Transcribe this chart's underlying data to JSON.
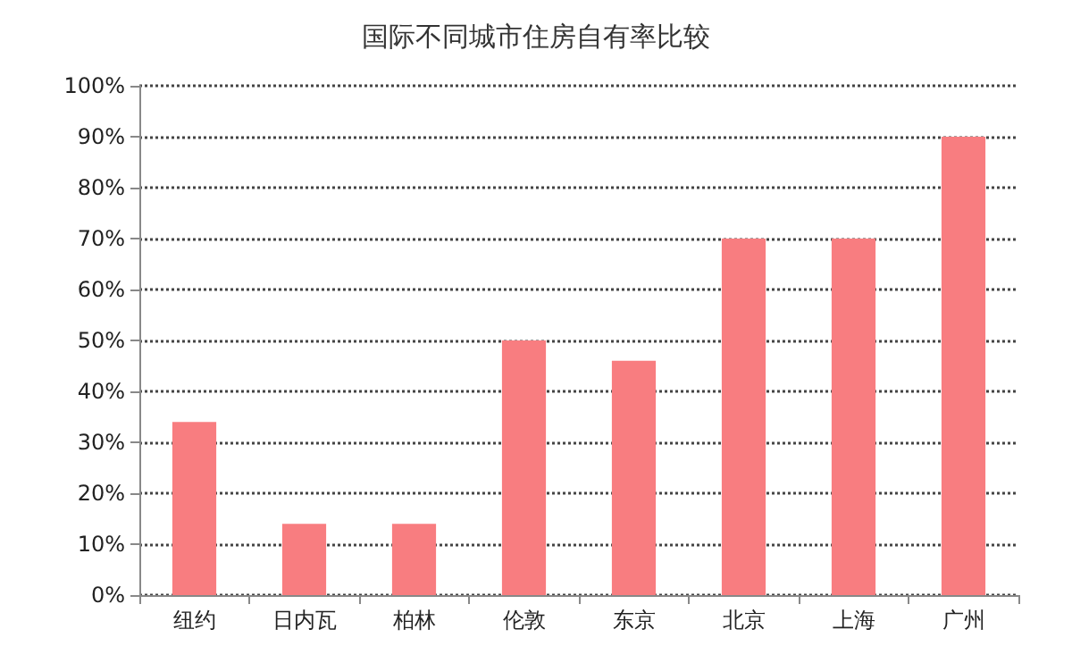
{
  "chart_data": {
    "type": "bar",
    "title": "国际不同城市住房自有率比较",
    "categories": [
      "纽约",
      "日内瓦",
      "柏林",
      "伦敦",
      "东京",
      "北京",
      "上海",
      "广州"
    ],
    "values": [
      34,
      14,
      14,
      50,
      46,
      70,
      70,
      90
    ],
    "color": "#f87d80",
    "ylim": [
      0,
      100
    ],
    "yticks": [
      {
        "value": 0,
        "label": "0%"
      },
      {
        "value": 10,
        "label": "10%"
      },
      {
        "value": 20,
        "label": "20%"
      },
      {
        "value": 30,
        "label": "30%"
      },
      {
        "value": 40,
        "label": "40%"
      },
      {
        "value": 50,
        "label": "50%"
      },
      {
        "value": 60,
        "label": "60%"
      },
      {
        "value": 70,
        "label": "70%"
      },
      {
        "value": 80,
        "label": "80%"
      },
      {
        "value": 90,
        "label": "90%"
      },
      {
        "value": 100,
        "label": "100%"
      }
    ],
    "grid": "y"
  }
}
